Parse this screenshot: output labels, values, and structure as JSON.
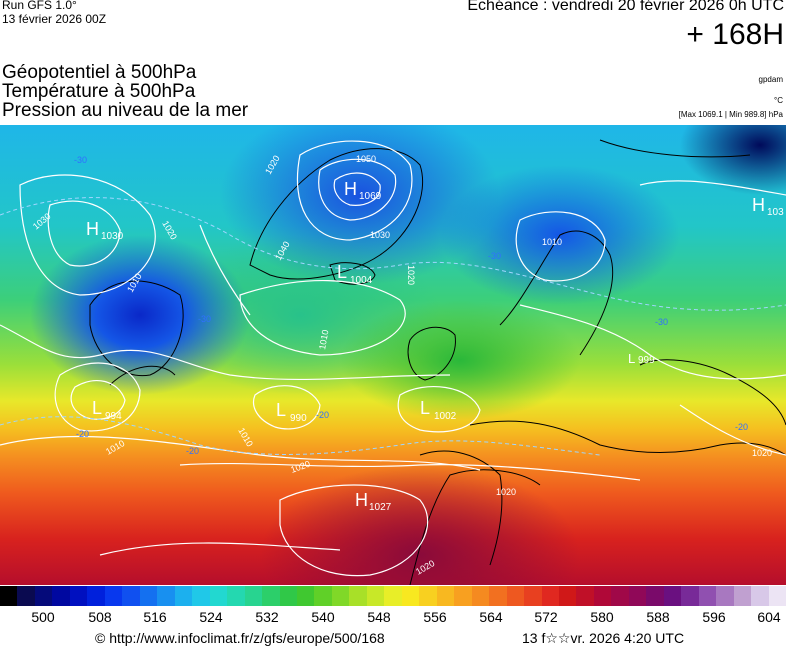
{
  "header": {
    "run": "Run GFS 1.0°",
    "run_date": "13 février 2026 00Z",
    "echeance": "Echéance : vendredi 20 février 2026 0h UTC",
    "horizon": "+ 168H"
  },
  "titles": [
    "Géopotentiel à 500hPa",
    "Température à 500hPa",
    "Pression au niveau de la mer"
  ],
  "units": {
    "geopotential": "gpdam",
    "temperature": "°C",
    "pressure_range": "[Max 1069.1 | Min 989.8] hPa"
  },
  "pressure_centres": [
    {
      "type": "H",
      "value": "1030"
    },
    {
      "type": "H",
      "value": "1069"
    },
    {
      "type": "H",
      "value": "103"
    },
    {
      "type": "L",
      "value": "1004"
    },
    {
      "type": "L",
      "value": "994"
    },
    {
      "type": "L",
      "value": "990"
    },
    {
      "type": "L",
      "value": "1002"
    },
    {
      "type": "L",
      "value": "999"
    },
    {
      "type": "H",
      "value": "1027"
    }
  ],
  "isobar_labels": [
    "1030",
    "1020",
    "1010",
    "1040",
    "1050",
    "1030",
    "1020",
    "1010",
    "1020",
    "1010",
    "1010",
    "1020",
    "1010",
    "1020",
    "1020",
    "1020"
  ],
  "temperature_labels": [
    "-30",
    "-30",
    "-20",
    "-20",
    "-30",
    "-30",
    "-20",
    "-20"
  ],
  "colour_scale": {
    "ticks": [
      "500",
      "508",
      "516",
      "524",
      "532",
      "540",
      "548",
      "556",
      "564",
      "572",
      "580",
      "588",
      "596",
      "604"
    ],
    "colours": [
      "#000000",
      "#0a0a50",
      "#050a7a",
      "#0008a0",
      "#0010c0",
      "#0020dc",
      "#0838ee",
      "#1050f0",
      "#1470f0",
      "#1890f0",
      "#1cb0ee",
      "#20c8e8",
      "#22d8d0",
      "#24d8b0",
      "#28d490",
      "#2ccf6a",
      "#30c848",
      "#40c830",
      "#60d028",
      "#80d828",
      "#a8e028",
      "#c8e828",
      "#e8ee28",
      "#f8e820",
      "#f8d020",
      "#f8b820",
      "#f8a020",
      "#f58a20",
      "#f27020",
      "#ee5820",
      "#e84020",
      "#e02820",
      "#d01818",
      "#c01028",
      "#b00838",
      "#a00848",
      "#900858",
      "#7a0a6a",
      "#6a1080",
      "#782a98",
      "#9050b0",
      "#a878c0",
      "#c0a0d0",
      "#d8c8e8",
      "#ece4f4"
    ]
  },
  "footer": {
    "url": "© http://www.infoclimat.fr/z/gfs/europe/500/168",
    "generated": "13 f☆☆vr. 2026  4:20 UTC"
  }
}
